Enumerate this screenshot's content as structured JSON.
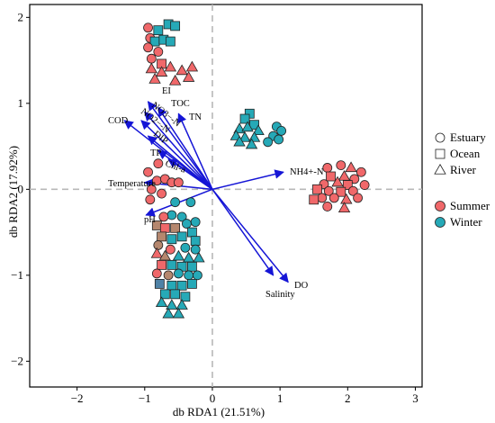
{
  "chart_data": {
    "type": "scatter",
    "title": "",
    "xlabel": "db RDA1 (21.51%)",
    "ylabel": "db RDA2 (17.92%)",
    "xlim": [
      -2.7,
      3.1
    ],
    "ylim": [
      -2.3,
      2.15
    ],
    "xticks": [
      -2,
      -1,
      0,
      1,
      2,
      3
    ],
    "yticks": [
      -2,
      -1,
      0,
      1,
      2
    ],
    "grid": false,
    "reference_lines": {
      "x": 0,
      "y": 0,
      "style": "dashed"
    },
    "legend_shape": [
      {
        "label": "Estuary",
        "shape": "circle"
      },
      {
        "label": "Ocean",
        "shape": "square"
      },
      {
        "label": "River",
        "shape": "triangle"
      }
    ],
    "legend_season": [
      {
        "label": "Summer",
        "color": "#f0686a"
      },
      {
        "label": "Winter",
        "color": "#26a9b7"
      }
    ],
    "legend_placement": "right",
    "colors": {
      "summer": "#f0686a",
      "winter": "#26a9b7",
      "brown": "#b5876e",
      "slate": "#4f82a6",
      "arrow": "#1515d6"
    },
    "vectors": [
      {
        "label": "EI",
        "x": -0.95,
        "y": 1.02
      },
      {
        "label": "TOC",
        "x": -0.8,
        "y": 0.95
      },
      {
        "label": "NO3−-N",
        "x": -1.0,
        "y": 0.9
      },
      {
        "label": "NO2−-N",
        "x": -1.05,
        "y": 0.8
      },
      {
        "label": "COD",
        "x": -1.3,
        "y": 0.8
      },
      {
        "label": "TN",
        "x": -0.5,
        "y": 0.88
      },
      {
        "label": "DIP",
        "x": -0.95,
        "y": 0.62
      },
      {
        "label": "TP",
        "x": -0.8,
        "y": 0.45
      },
      {
        "label": "Chl-a",
        "x": -0.65,
        "y": 0.35
      },
      {
        "label": "Temperature",
        "x": -1.0,
        "y": 0.08
      },
      {
        "label": "pH",
        "x": -0.98,
        "y": -0.3
      },
      {
        "label": "NH4+-N",
        "x": 1.05,
        "y": 0.2
      },
      {
        "label": "DO",
        "x": 1.12,
        "y": -1.08
      },
      {
        "label": "Salinity",
        "x": 0.9,
        "y": -1.0
      }
    ],
    "points": [
      {
        "x": -0.95,
        "y": 1.88,
        "shape": "circle",
        "season": "summer"
      },
      {
        "x": -0.8,
        "y": 1.85,
        "shape": "square",
        "season": "winter"
      },
      {
        "x": -0.65,
        "y": 1.92,
        "shape": "square",
        "season": "winter"
      },
      {
        "x": -0.55,
        "y": 1.9,
        "shape": "square",
        "season": "winter"
      },
      {
        "x": -0.92,
        "y": 1.76,
        "shape": "circle",
        "season": "summer"
      },
      {
        "x": -0.85,
        "y": 1.72,
        "shape": "square",
        "season": "winter"
      },
      {
        "x": -0.72,
        "y": 1.74,
        "shape": "square",
        "season": "winter"
      },
      {
        "x": -0.62,
        "y": 1.72,
        "shape": "square",
        "season": "winter"
      },
      {
        "x": -0.95,
        "y": 1.65,
        "shape": "circle",
        "season": "summer"
      },
      {
        "x": -0.8,
        "y": 1.6,
        "shape": "circle",
        "season": "summer"
      },
      {
        "x": -0.9,
        "y": 1.52,
        "shape": "circle",
        "season": "summer"
      },
      {
        "x": -0.75,
        "y": 1.46,
        "shape": "square",
        "season": "summer"
      },
      {
        "x": -0.9,
        "y": 1.4,
        "shape": "triangle",
        "season": "summer"
      },
      {
        "x": -0.75,
        "y": 1.36,
        "shape": "triangle",
        "season": "summer"
      },
      {
        "x": -0.62,
        "y": 1.42,
        "shape": "triangle",
        "season": "summer"
      },
      {
        "x": -0.45,
        "y": 1.38,
        "shape": "triangle",
        "season": "summer"
      },
      {
        "x": -0.3,
        "y": 1.42,
        "shape": "triangle",
        "season": "summer"
      },
      {
        "x": -0.85,
        "y": 1.28,
        "shape": "triangle",
        "season": "summer"
      },
      {
        "x": -0.55,
        "y": 1.26,
        "shape": "triangle",
        "season": "summer"
      },
      {
        "x": -0.35,
        "y": 1.3,
        "shape": "triangle",
        "season": "summer"
      },
      {
        "x": 0.55,
        "y": 0.88,
        "shape": "square",
        "season": "winter"
      },
      {
        "x": 0.48,
        "y": 0.82,
        "shape": "square",
        "season": "winter"
      },
      {
        "x": 0.62,
        "y": 0.75,
        "shape": "square",
        "season": "winter"
      },
      {
        "x": 0.4,
        "y": 0.7,
        "shape": "triangle",
        "season": "winter"
      },
      {
        "x": 0.52,
        "y": 0.72,
        "shape": "triangle",
        "season": "winter"
      },
      {
        "x": 0.68,
        "y": 0.68,
        "shape": "triangle",
        "season": "winter"
      },
      {
        "x": 0.35,
        "y": 0.62,
        "shape": "triangle",
        "season": "winter"
      },
      {
        "x": 0.48,
        "y": 0.6,
        "shape": "triangle",
        "season": "winter"
      },
      {
        "x": 0.62,
        "y": 0.6,
        "shape": "triangle",
        "season": "winter"
      },
      {
        "x": 0.4,
        "y": 0.55,
        "shape": "triangle",
        "season": "winter"
      },
      {
        "x": 0.58,
        "y": 0.52,
        "shape": "triangle",
        "season": "winter"
      },
      {
        "x": 0.95,
        "y": 0.73,
        "shape": "circle",
        "season": "winter"
      },
      {
        "x": 1.02,
        "y": 0.68,
        "shape": "circle",
        "season": "winter"
      },
      {
        "x": 0.9,
        "y": 0.62,
        "shape": "circle",
        "season": "winter"
      },
      {
        "x": 0.98,
        "y": 0.58,
        "shape": "circle",
        "season": "winter"
      },
      {
        "x": 0.82,
        "y": 0.55,
        "shape": "circle",
        "season": "winter"
      },
      {
        "x": 1.7,
        "y": 0.25,
        "shape": "circle",
        "season": "summer"
      },
      {
        "x": 1.9,
        "y": 0.28,
        "shape": "circle",
        "season": "summer"
      },
      {
        "x": 2.05,
        "y": 0.25,
        "shape": "triangle",
        "season": "summer"
      },
      {
        "x": 2.2,
        "y": 0.2,
        "shape": "circle",
        "season": "summer"
      },
      {
        "x": 1.75,
        "y": 0.15,
        "shape": "square",
        "season": "summer"
      },
      {
        "x": 1.95,
        "y": 0.15,
        "shape": "triangle",
        "season": "summer"
      },
      {
        "x": 2.1,
        "y": 0.12,
        "shape": "circle",
        "season": "summer"
      },
      {
        "x": 1.65,
        "y": 0.06,
        "shape": "circle",
        "season": "summer"
      },
      {
        "x": 1.85,
        "y": 0.08,
        "shape": "triangle",
        "season": "summer"
      },
      {
        "x": 2.0,
        "y": 0.05,
        "shape": "square",
        "season": "summer"
      },
      {
        "x": 2.25,
        "y": 0.05,
        "shape": "circle",
        "season": "summer"
      },
      {
        "x": 1.55,
        "y": 0.0,
        "shape": "square",
        "season": "summer"
      },
      {
        "x": 1.72,
        "y": -0.02,
        "shape": "circle",
        "season": "summer"
      },
      {
        "x": 1.9,
        "y": -0.03,
        "shape": "square",
        "season": "summer"
      },
      {
        "x": 2.08,
        "y": -0.02,
        "shape": "circle",
        "season": "summer"
      },
      {
        "x": 1.62,
        "y": -0.1,
        "shape": "circle",
        "season": "summer"
      },
      {
        "x": 1.8,
        "y": -0.1,
        "shape": "circle",
        "season": "summer"
      },
      {
        "x": 1.98,
        "y": -0.12,
        "shape": "triangle",
        "season": "summer"
      },
      {
        "x": 1.5,
        "y": -0.12,
        "shape": "square",
        "season": "summer"
      },
      {
        "x": 2.15,
        "y": -0.1,
        "shape": "circle",
        "season": "summer"
      },
      {
        "x": 1.7,
        "y": -0.2,
        "shape": "circle",
        "season": "summer"
      },
      {
        "x": 1.95,
        "y": -0.22,
        "shape": "triangle",
        "season": "summer"
      },
      {
        "x": -0.8,
        "y": 0.3,
        "shape": "circle",
        "season": "summer"
      },
      {
        "x": -0.95,
        "y": 0.2,
        "shape": "circle",
        "season": "summer"
      },
      {
        "x": -0.82,
        "y": 0.1,
        "shape": "circle",
        "season": "summer"
      },
      {
        "x": -0.7,
        "y": 0.12,
        "shape": "circle",
        "season": "summer"
      },
      {
        "x": -0.6,
        "y": 0.08,
        "shape": "circle",
        "season": "summer"
      },
      {
        "x": -0.5,
        "y": 0.08,
        "shape": "circle",
        "season": "summer"
      },
      {
        "x": -0.9,
        "y": 0.0,
        "shape": "circle",
        "season": "summer"
      },
      {
        "x": -0.75,
        "y": -0.05,
        "shape": "circle",
        "season": "summer"
      },
      {
        "x": -0.92,
        "y": -0.12,
        "shape": "circle",
        "season": "summer"
      },
      {
        "x": -0.55,
        "y": -0.15,
        "shape": "circle",
        "season": "winter"
      },
      {
        "x": -0.32,
        "y": -0.15,
        "shape": "circle",
        "season": "winter"
      },
      {
        "x": -0.6,
        "y": -0.3,
        "shape": "circle",
        "season": "winter"
      },
      {
        "x": -0.45,
        "y": -0.32,
        "shape": "circle",
        "season": "winter"
      },
      {
        "x": -0.72,
        "y": -0.32,
        "shape": "circle",
        "season": "summer"
      },
      {
        "x": -0.25,
        "y": -0.38,
        "shape": "circle",
        "season": "winter"
      },
      {
        "x": -0.38,
        "y": -0.4,
        "shape": "circle",
        "season": "winter"
      },
      {
        "x": -0.82,
        "y": -0.42,
        "shape": "square",
        "season": "brown"
      },
      {
        "x": -0.7,
        "y": -0.45,
        "shape": "square",
        "season": "summer"
      },
      {
        "x": -0.55,
        "y": -0.45,
        "shape": "square",
        "season": "brown"
      },
      {
        "x": -0.3,
        "y": -0.5,
        "shape": "square",
        "season": "winter"
      },
      {
        "x": -0.45,
        "y": -0.55,
        "shape": "square",
        "season": "winter"
      },
      {
        "x": -0.75,
        "y": -0.55,
        "shape": "square",
        "season": "brown"
      },
      {
        "x": -0.6,
        "y": -0.58,
        "shape": "square",
        "season": "winter"
      },
      {
        "x": -0.25,
        "y": -0.6,
        "shape": "square",
        "season": "winter"
      },
      {
        "x": -0.8,
        "y": -0.65,
        "shape": "circle",
        "season": "brown"
      },
      {
        "x": -0.62,
        "y": -0.7,
        "shape": "circle",
        "season": "summer"
      },
      {
        "x": -0.4,
        "y": -0.68,
        "shape": "circle",
        "season": "winter"
      },
      {
        "x": -0.25,
        "y": -0.7,
        "shape": "circle",
        "season": "winter"
      },
      {
        "x": -0.82,
        "y": -0.75,
        "shape": "triangle",
        "season": "summer"
      },
      {
        "x": -0.7,
        "y": -0.78,
        "shape": "triangle",
        "season": "brown"
      },
      {
        "x": -0.5,
        "y": -0.78,
        "shape": "triangle",
        "season": "winter"
      },
      {
        "x": -0.35,
        "y": -0.8,
        "shape": "triangle",
        "season": "winter"
      },
      {
        "x": -0.2,
        "y": -0.8,
        "shape": "triangle",
        "season": "winter"
      },
      {
        "x": -0.75,
        "y": -0.88,
        "shape": "square",
        "season": "summer"
      },
      {
        "x": -0.6,
        "y": -0.88,
        "shape": "square",
        "season": "winter"
      },
      {
        "x": -0.45,
        "y": -0.9,
        "shape": "square",
        "season": "winter"
      },
      {
        "x": -0.3,
        "y": -0.9,
        "shape": "square",
        "season": "winter"
      },
      {
        "x": -0.82,
        "y": -0.98,
        "shape": "circle",
        "season": "summer"
      },
      {
        "x": -0.65,
        "y": -1.0,
        "shape": "circle",
        "season": "brown"
      },
      {
        "x": -0.5,
        "y": -0.98,
        "shape": "circle",
        "season": "winter"
      },
      {
        "x": -0.35,
        "y": -1.0,
        "shape": "circle",
        "season": "winter"
      },
      {
        "x": -0.22,
        "y": -1.0,
        "shape": "circle",
        "season": "winter"
      },
      {
        "x": -0.78,
        "y": -1.1,
        "shape": "square",
        "season": "slate"
      },
      {
        "x": -0.6,
        "y": -1.12,
        "shape": "square",
        "season": "winter"
      },
      {
        "x": -0.45,
        "y": -1.12,
        "shape": "square",
        "season": "winter"
      },
      {
        "x": -0.3,
        "y": -1.1,
        "shape": "square",
        "season": "winter"
      },
      {
        "x": -0.7,
        "y": -1.22,
        "shape": "square",
        "season": "winter"
      },
      {
        "x": -0.55,
        "y": -1.22,
        "shape": "square",
        "season": "winter"
      },
      {
        "x": -0.4,
        "y": -1.25,
        "shape": "square",
        "season": "winter"
      },
      {
        "x": -0.75,
        "y": -1.32,
        "shape": "triangle",
        "season": "winter"
      },
      {
        "x": -0.6,
        "y": -1.35,
        "shape": "triangle",
        "season": "winter"
      },
      {
        "x": -0.45,
        "y": -1.35,
        "shape": "triangle",
        "season": "winter"
      },
      {
        "x": -0.65,
        "y": -1.45,
        "shape": "triangle",
        "season": "winter"
      },
      {
        "x": -0.5,
        "y": -1.45,
        "shape": "triangle",
        "season": "winter"
      }
    ]
  }
}
